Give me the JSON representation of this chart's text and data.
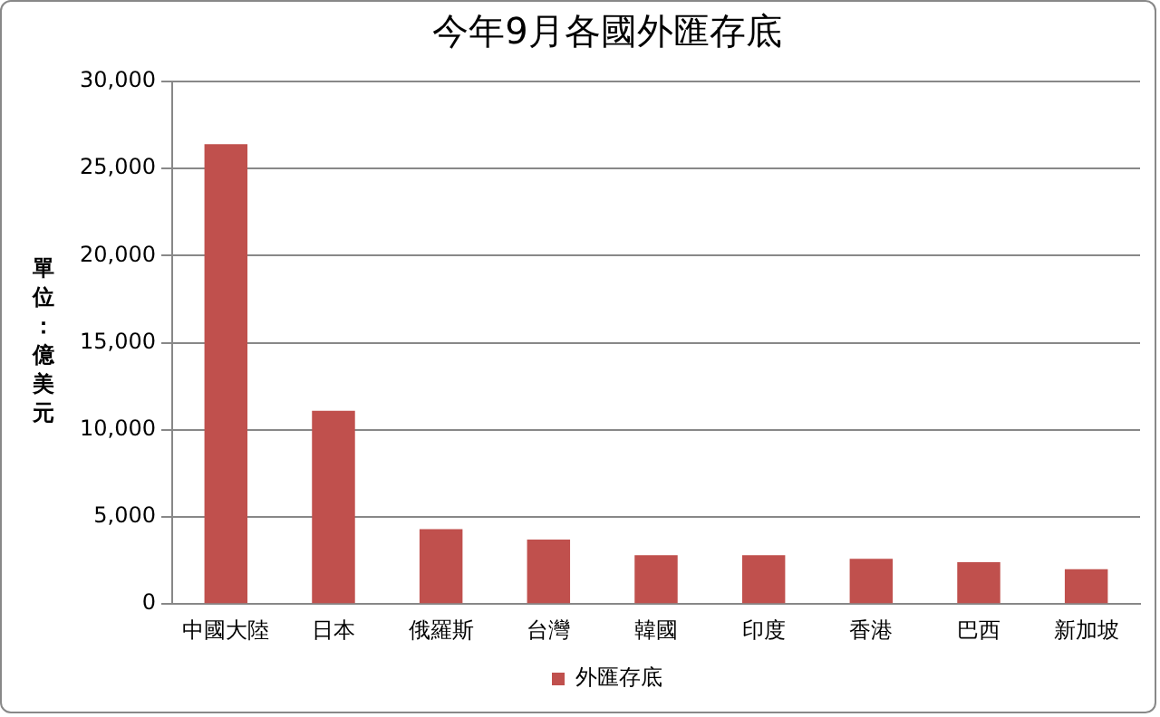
{
  "chart_data": {
    "type": "bar",
    "title": "今年9月各國外匯存底",
    "ylabel": "單位：億美元",
    "categories": [
      "中國大陸",
      "日本",
      "俄羅斯",
      "台灣",
      "韓國",
      "印度",
      "香港",
      "巴西",
      "新加坡"
    ],
    "series": [
      {
        "name": "外匯存底",
        "color": "#c0504d",
        "values": [
          26400,
          11100,
          4300,
          3700,
          2800,
          2800,
          2600,
          2400,
          2000
        ]
      }
    ],
    "ylim": [
      0,
      30000
    ],
    "yticks": [
      {
        "value": 0,
        "label": "0"
      },
      {
        "value": 5000,
        "label": "5,000"
      },
      {
        "value": 10000,
        "label": "10,000"
      },
      {
        "value": 15000,
        "label": "15,000"
      },
      {
        "value": 20000,
        "label": "20,000"
      },
      {
        "value": 25000,
        "label": "25,000"
      },
      {
        "value": 30000,
        "label": "30,000"
      }
    ],
    "grid": "y",
    "legend": "bottom"
  }
}
